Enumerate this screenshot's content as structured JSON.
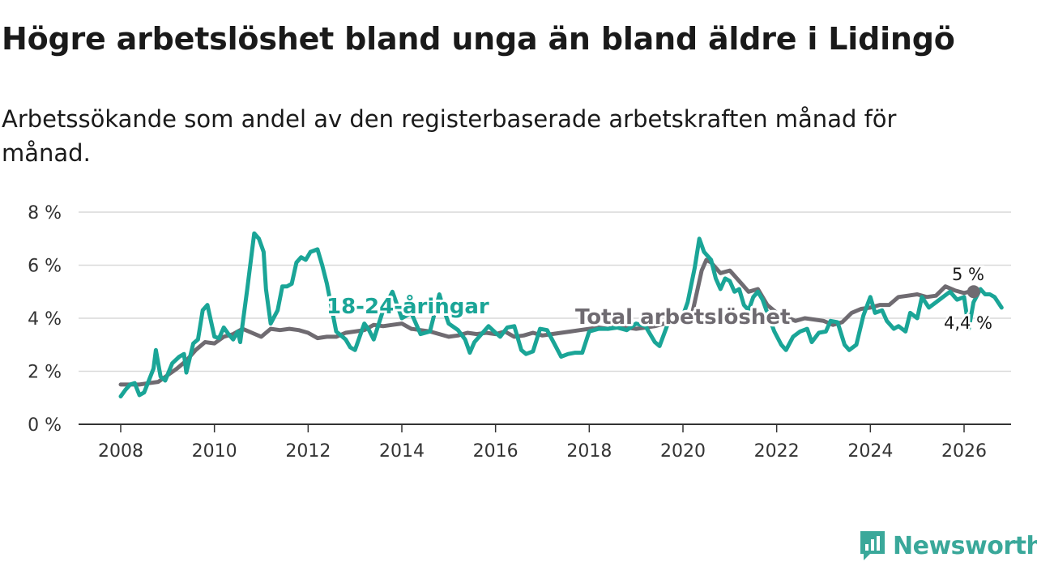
{
  "title": "Högre arbetslöshet bland unga än bland äldre i Lidingö",
  "subtitle": "Arbetssökande som andel av den registerbaserade arbetskraften månad för månad.",
  "brand": {
    "name": "Newsworthy",
    "color": "#3aa89a"
  },
  "chart_data": {
    "type": "line",
    "title": "Högre arbetslöshet bland unga än bland äldre i Lidingö",
    "ylim": [
      0,
      8
    ],
    "xlim": [
      2007.7,
      2027.0
    ],
    "y_ticks": [
      0,
      2,
      4,
      6,
      8
    ],
    "y_tick_labels": [
      "0 %",
      "2 %",
      "4 %",
      "6 %",
      "8 %"
    ],
    "x_ticks": [
      2008,
      2010,
      2012,
      2014,
      2016,
      2018,
      2020,
      2022,
      2024,
      2026
    ],
    "x_tick_labels": [
      "2008",
      "2010",
      "2012",
      "2014",
      "2016",
      "2018",
      "2020",
      "2022",
      "2024",
      "2026"
    ],
    "grid": true,
    "series": [
      {
        "name": "Total arbetslöshet",
        "label": "Total arbetslöshet",
        "color": "#6f6b71",
        "end_label": "5 %",
        "points": [
          [
            2008.0,
            1.5
          ],
          [
            2008.2,
            1.5
          ],
          [
            2008.4,
            1.5
          ],
          [
            2008.6,
            1.55
          ],
          [
            2008.8,
            1.6
          ],
          [
            2009.0,
            1.85
          ],
          [
            2009.2,
            2.1
          ],
          [
            2009.4,
            2.4
          ],
          [
            2009.6,
            2.8
          ],
          [
            2009.8,
            3.1
          ],
          [
            2010.0,
            3.05
          ],
          [
            2010.2,
            3.3
          ],
          [
            2010.4,
            3.4
          ],
          [
            2010.6,
            3.6
          ],
          [
            2010.8,
            3.45
          ],
          [
            2011.0,
            3.3
          ],
          [
            2011.2,
            3.6
          ],
          [
            2011.4,
            3.55
          ],
          [
            2011.6,
            3.6
          ],
          [
            2011.8,
            3.55
          ],
          [
            2012.0,
            3.45
          ],
          [
            2012.2,
            3.25
          ],
          [
            2012.4,
            3.3
          ],
          [
            2012.6,
            3.3
          ],
          [
            2012.8,
            3.45
          ],
          [
            2013.0,
            3.5
          ],
          [
            2013.2,
            3.55
          ],
          [
            2013.4,
            3.75
          ],
          [
            2013.6,
            3.7
          ],
          [
            2013.8,
            3.75
          ],
          [
            2014.0,
            3.8
          ],
          [
            2014.2,
            3.6
          ],
          [
            2014.4,
            3.55
          ],
          [
            2014.6,
            3.5
          ],
          [
            2014.8,
            3.4
          ],
          [
            2015.0,
            3.3
          ],
          [
            2015.2,
            3.35
          ],
          [
            2015.4,
            3.45
          ],
          [
            2015.6,
            3.4
          ],
          [
            2015.8,
            3.45
          ],
          [
            2016.0,
            3.4
          ],
          [
            2016.2,
            3.5
          ],
          [
            2016.4,
            3.3
          ],
          [
            2016.6,
            3.35
          ],
          [
            2016.8,
            3.45
          ],
          [
            2017.0,
            3.35
          ],
          [
            2017.2,
            3.4
          ],
          [
            2017.4,
            3.45
          ],
          [
            2017.6,
            3.5
          ],
          [
            2017.8,
            3.55
          ],
          [
            2018.0,
            3.6
          ],
          [
            2018.2,
            3.65
          ],
          [
            2018.4,
            3.6
          ],
          [
            2018.6,
            3.7
          ],
          [
            2018.8,
            3.65
          ],
          [
            2019.0,
            3.6
          ],
          [
            2019.2,
            3.65
          ],
          [
            2019.4,
            3.7
          ],
          [
            2019.6,
            3.8
          ],
          [
            2019.8,
            3.85
          ],
          [
            2020.0,
            4.0
          ],
          [
            2020.2,
            4.2
          ],
          [
            2020.4,
            5.8
          ],
          [
            2020.5,
            6.2
          ],
          [
            2020.6,
            6.1
          ],
          [
            2020.8,
            5.7
          ],
          [
            2021.0,
            5.8
          ],
          [
            2021.2,
            5.4
          ],
          [
            2021.4,
            5.0
          ],
          [
            2021.6,
            5.1
          ],
          [
            2021.8,
            4.5
          ],
          [
            2022.0,
            4.2
          ],
          [
            2022.2,
            4.05
          ],
          [
            2022.4,
            3.9
          ],
          [
            2022.6,
            4.0
          ],
          [
            2022.8,
            3.95
          ],
          [
            2023.0,
            3.9
          ],
          [
            2023.2,
            3.75
          ],
          [
            2023.4,
            3.85
          ],
          [
            2023.6,
            4.2
          ],
          [
            2023.8,
            4.35
          ],
          [
            2024.0,
            4.4
          ],
          [
            2024.2,
            4.5
          ],
          [
            2024.4,
            4.5
          ],
          [
            2024.6,
            4.8
          ],
          [
            2024.8,
            4.85
          ],
          [
            2025.0,
            4.9
          ],
          [
            2025.2,
            4.8
          ],
          [
            2025.4,
            4.85
          ],
          [
            2025.6,
            5.2
          ],
          [
            2025.8,
            5.05
          ],
          [
            2026.0,
            4.95
          ],
          [
            2026.1,
            5.0
          ]
        ]
      },
      {
        "name": "18-24-åringar",
        "label": "18-24-åringar",
        "color": "#1aa597",
        "end_label": "4,4 %",
        "points": [
          [
            2008.0,
            1.05
          ],
          [
            2008.1,
            1.3
          ],
          [
            2008.2,
            1.5
          ],
          [
            2008.3,
            1.55
          ],
          [
            2008.4,
            1.1
          ],
          [
            2008.5,
            1.2
          ],
          [
            2008.6,
            1.65
          ],
          [
            2008.7,
            2.1
          ],
          [
            2008.75,
            2.8
          ],
          [
            2008.85,
            1.8
          ],
          [
            2008.95,
            1.65
          ],
          [
            2009.1,
            2.3
          ],
          [
            2009.25,
            2.55
          ],
          [
            2009.35,
            2.65
          ],
          [
            2009.4,
            1.95
          ],
          [
            2009.55,
            3.05
          ],
          [
            2009.65,
            3.2
          ],
          [
            2009.75,
            4.3
          ],
          [
            2009.85,
            4.5
          ],
          [
            2010.0,
            3.3
          ],
          [
            2010.1,
            3.25
          ],
          [
            2010.2,
            3.65
          ],
          [
            2010.3,
            3.4
          ],
          [
            2010.4,
            3.2
          ],
          [
            2010.5,
            3.5
          ],
          [
            2010.55,
            3.1
          ],
          [
            2010.7,
            5.1
          ],
          [
            2010.85,
            7.2
          ],
          [
            2010.95,
            7.0
          ],
          [
            2011.05,
            6.5
          ],
          [
            2011.1,
            5.1
          ],
          [
            2011.2,
            3.8
          ],
          [
            2011.35,
            4.3
          ],
          [
            2011.45,
            5.2
          ],
          [
            2011.55,
            5.2
          ],
          [
            2011.65,
            5.3
          ],
          [
            2011.75,
            6.1
          ],
          [
            2011.85,
            6.3
          ],
          [
            2011.95,
            6.2
          ],
          [
            2012.05,
            6.5
          ],
          [
            2012.2,
            6.6
          ],
          [
            2012.3,
            6.0
          ],
          [
            2012.4,
            5.3
          ],
          [
            2012.6,
            3.5
          ],
          [
            2012.8,
            3.2
          ],
          [
            2012.9,
            2.9
          ],
          [
            2013.0,
            2.8
          ],
          [
            2013.1,
            3.3
          ],
          [
            2013.2,
            3.8
          ],
          [
            2013.3,
            3.55
          ],
          [
            2013.4,
            3.2
          ],
          [
            2013.6,
            4.3
          ],
          [
            2013.8,
            5.0
          ],
          [
            2014.0,
            4.0
          ],
          [
            2014.2,
            4.2
          ],
          [
            2014.4,
            3.4
          ],
          [
            2014.6,
            3.5
          ],
          [
            2014.8,
            4.9
          ],
          [
            2014.9,
            4.3
          ],
          [
            2015.0,
            3.8
          ],
          [
            2015.2,
            3.55
          ],
          [
            2015.35,
            3.2
          ],
          [
            2015.45,
            2.7
          ],
          [
            2015.55,
            3.1
          ],
          [
            2015.7,
            3.4
          ],
          [
            2015.85,
            3.7
          ],
          [
            2016.0,
            3.45
          ],
          [
            2016.1,
            3.3
          ],
          [
            2016.25,
            3.65
          ],
          [
            2016.4,
            3.7
          ],
          [
            2016.55,
            2.8
          ],
          [
            2016.65,
            2.65
          ],
          [
            2016.8,
            2.75
          ],
          [
            2016.95,
            3.6
          ],
          [
            2017.1,
            3.55
          ],
          [
            2017.25,
            3.05
          ],
          [
            2017.4,
            2.55
          ],
          [
            2017.55,
            2.65
          ],
          [
            2017.7,
            2.7
          ],
          [
            2017.85,
            2.7
          ],
          [
            2018.0,
            3.5
          ],
          [
            2018.2,
            3.6
          ],
          [
            2018.4,
            3.6
          ],
          [
            2018.6,
            3.65
          ],
          [
            2018.8,
            3.55
          ],
          [
            2019.0,
            3.8
          ],
          [
            2019.2,
            3.7
          ],
          [
            2019.4,
            3.1
          ],
          [
            2019.5,
            2.95
          ],
          [
            2019.7,
            3.9
          ],
          [
            2019.9,
            4.0
          ],
          [
            2020.0,
            4.1
          ],
          [
            2020.1,
            4.6
          ],
          [
            2020.25,
            5.9
          ],
          [
            2020.35,
            7.0
          ],
          [
            2020.45,
            6.5
          ],
          [
            2020.6,
            6.2
          ],
          [
            2020.7,
            5.5
          ],
          [
            2020.8,
            5.1
          ],
          [
            2020.9,
            5.5
          ],
          [
            2021.0,
            5.4
          ],
          [
            2021.1,
            5.0
          ],
          [
            2021.2,
            5.1
          ],
          [
            2021.3,
            4.5
          ],
          [
            2021.4,
            4.3
          ],
          [
            2021.5,
            4.8
          ],
          [
            2021.6,
            5.0
          ],
          [
            2021.7,
            4.7
          ],
          [
            2021.8,
            4.2
          ],
          [
            2021.95,
            3.5
          ],
          [
            2022.1,
            3.0
          ],
          [
            2022.2,
            2.8
          ],
          [
            2022.35,
            3.3
          ],
          [
            2022.5,
            3.5
          ],
          [
            2022.65,
            3.6
          ],
          [
            2022.75,
            3.1
          ],
          [
            2022.9,
            3.45
          ],
          [
            2023.05,
            3.5
          ],
          [
            2023.15,
            3.9
          ],
          [
            2023.3,
            3.85
          ],
          [
            2023.45,
            3.0
          ],
          [
            2023.55,
            2.8
          ],
          [
            2023.7,
            3.0
          ],
          [
            2023.85,
            4.1
          ],
          [
            2024.0,
            4.8
          ],
          [
            2024.1,
            4.2
          ],
          [
            2024.25,
            4.3
          ],
          [
            2024.35,
            3.9
          ],
          [
            2024.5,
            3.6
          ],
          [
            2024.6,
            3.7
          ],
          [
            2024.75,
            3.5
          ],
          [
            2024.85,
            4.2
          ],
          [
            2025.0,
            4.0
          ],
          [
            2025.1,
            4.8
          ],
          [
            2025.25,
            4.4
          ],
          [
            2025.4,
            4.6
          ],
          [
            2025.55,
            4.8
          ],
          [
            2025.7,
            5.0
          ],
          [
            2025.85,
            4.7
          ],
          [
            2026.0,
            4.8
          ],
          [
            2026.1,
            3.6
          ],
          [
            2026.2,
            4.6
          ],
          [
            2026.35,
            5.1
          ],
          [
            2026.45,
            4.9
          ],
          [
            2026.55,
            4.9
          ],
          [
            2026.65,
            4.8
          ],
          [
            2026.8,
            4.4
          ]
        ]
      }
    ]
  }
}
